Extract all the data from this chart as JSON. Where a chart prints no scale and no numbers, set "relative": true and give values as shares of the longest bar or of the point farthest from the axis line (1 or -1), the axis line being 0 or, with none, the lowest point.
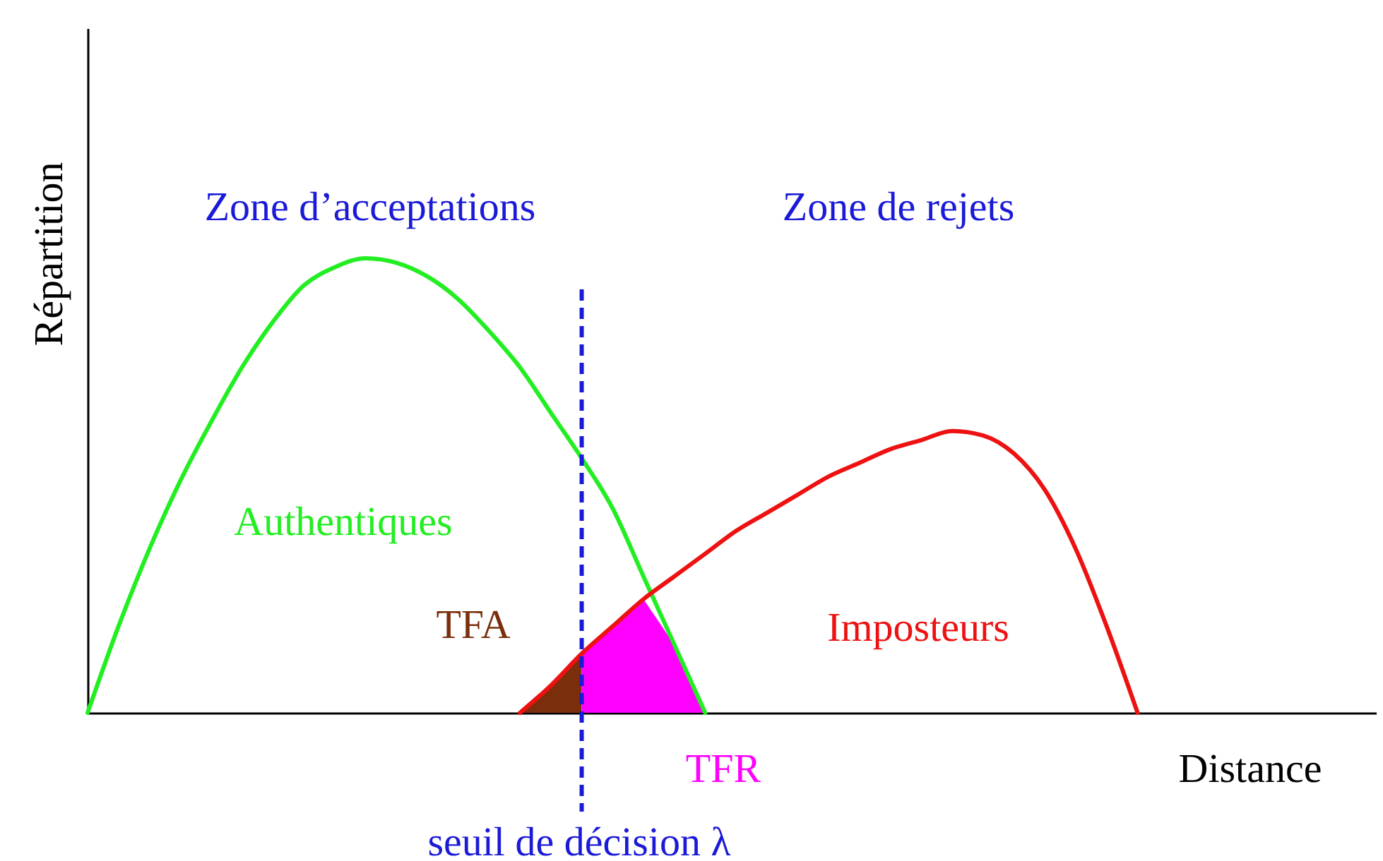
{
  "chart_data": {
    "type": "line",
    "relative": true,
    "xlabel": "Distance",
    "ylabel": "Répartition",
    "grid": false,
    "tick_labels": false,
    "categories": [
      null,
      null,
      null,
      null,
      null,
      null,
      null,
      null,
      null,
      null,
      null,
      null,
      null,
      null,
      null,
      null,
      null,
      null,
      null,
      null,
      null,
      null,
      null,
      null,
      null,
      null,
      null,
      null,
      null,
      null,
      null,
      null,
      null,
      null,
      null
    ],
    "series": [
      {
        "name": "TFA",
        "type": "area",
        "color": "#7a2e0c",
        "values": [
          null,
          null,
          null,
          null,
          null,
          null,
          null,
          null,
          null,
          null,
          null,
          null,
          null,
          null,
          0,
          0.06,
          0.13,
          null,
          null,
          null,
          null,
          null,
          null,
          null,
          null,
          null,
          null,
          null,
          null,
          null,
          null,
          null,
          null,
          null,
          null
        ]
      },
      {
        "name": "TFR",
        "type": "area",
        "color": "#ff00ff",
        "values": [
          null,
          null,
          null,
          null,
          null,
          null,
          null,
          null,
          null,
          null,
          null,
          null,
          null,
          null,
          null,
          null,
          0.13,
          0.19,
          0.25,
          0.15,
          0,
          null,
          null,
          null,
          null,
          null,
          null,
          null,
          null,
          null,
          null,
          null,
          null,
          null,
          null
        ]
      },
      {
        "name": "Authentiques",
        "color": "#22ee22",
        "values": [
          0,
          0.19,
          0.36,
          0.51,
          0.64,
          0.76,
          0.86,
          0.94,
          0.98,
          1,
          0.99,
          0.96,
          0.91,
          0.84,
          0.76,
          0.66,
          0.56,
          0.45,
          0.3,
          0.15,
          0,
          null,
          null,
          null,
          null,
          null,
          null,
          null,
          null,
          null,
          null,
          null,
          null,
          null,
          null
        ]
      },
      {
        "name": "Imposteurs",
        "color": "#ee1111",
        "values": [
          null,
          null,
          null,
          null,
          null,
          null,
          null,
          null,
          null,
          null,
          null,
          null,
          null,
          null,
          0,
          0.06,
          0.13,
          0.19,
          0.25,
          0.3,
          0.35,
          0.4,
          0.44,
          0.48,
          0.52,
          0.55,
          0.58,
          0.6,
          0.62,
          0.61,
          0.57,
          0.49,
          0.36,
          0.19,
          0
        ]
      }
    ],
    "annotations": [
      "Zone d’acceptations",
      "Zone de rejets",
      "seuil de décision λ"
    ]
  }
}
